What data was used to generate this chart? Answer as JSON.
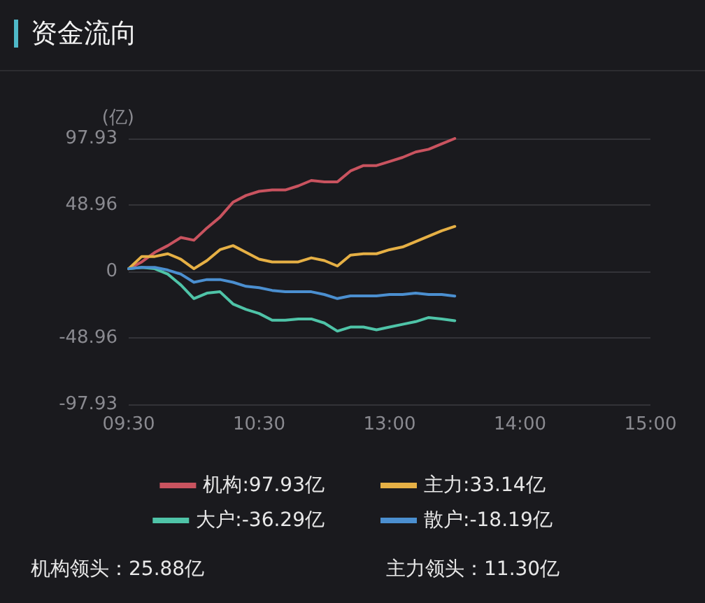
{
  "chart_data": {
    "type": "line",
    "title": "资金流向",
    "ylabel": "(亿)",
    "categories": [
      "09:30",
      null,
      null,
      null,
      null,
      null,
      null,
      null,
      null,
      null,
      "10:30",
      null,
      null,
      null,
      null,
      null,
      null,
      null,
      null,
      null,
      "13:00",
      null,
      null,
      null,
      null,
      null,
      null,
      null,
      null,
      null,
      "14:00",
      null,
      null,
      null,
      null,
      null,
      null,
      null,
      null,
      null,
      "15:00"
    ],
    "series": [
      {
        "name": "机构:97.93亿",
        "color": "#c9535f",
        "values": [
          2,
          7,
          14,
          19,
          25,
          23,
          32,
          40,
          51,
          56,
          59,
          60,
          60,
          63,
          67,
          66,
          66,
          74,
          78,
          78,
          81,
          84,
          88,
          90,
          94,
          97.93,
          null,
          null,
          null,
          null,
          null,
          null,
          null,
          null,
          null,
          null,
          null,
          null,
          null,
          null,
          null
        ]
      },
      {
        "name": "主力:33.14亿",
        "color": "#e6b045",
        "values": [
          2,
          11,
          11,
          13,
          9,
          2,
          8,
          16,
          19,
          14,
          9,
          7,
          7,
          7,
          10,
          8,
          4,
          12,
          13,
          13,
          16,
          18,
          22,
          26,
          30,
          33.14,
          null,
          null,
          null,
          null,
          null,
          null,
          null,
          null,
          null,
          null,
          null,
          null,
          null,
          null,
          null
        ]
      },
      {
        "name": "大户:-36.29亿",
        "color": "#4fc4a8",
        "values": [
          2,
          3,
          2,
          -2,
          -10,
          -20,
          -16,
          -15,
          -24,
          -28,
          -31,
          -36,
          -36,
          -35,
          -35,
          -38,
          -44,
          -41,
          -41,
          -43,
          -41,
          -39,
          -37,
          -34,
          -35,
          -36.29,
          null,
          null,
          null,
          null,
          null,
          null,
          null,
          null,
          null,
          null,
          null,
          null,
          null,
          null,
          null
        ]
      },
      {
        "name": "散户:-18.19亿",
        "color": "#4b8fd0",
        "values": [
          2,
          3,
          3,
          1,
          -2,
          -8,
          -6,
          -6,
          -8,
          -11,
          -12,
          -14,
          -15,
          -15,
          -15,
          -17,
          -20,
          -18,
          -18,
          -18,
          -17,
          -17,
          -16,
          -17,
          -17,
          -18.19,
          null,
          null,
          null,
          null,
          null,
          null,
          null,
          null,
          null,
          null,
          null,
          null,
          null,
          null,
          null
        ]
      }
    ],
    "ylim": [
      -97.93,
      97.93
    ],
    "yticks": [
      -97.93,
      -48.96,
      0,
      48.96,
      97.93
    ],
    "grid": "y",
    "legend": "bottom",
    "marker": "none",
    "line_style": "solid",
    "annotations": [
      "机构领头：25.88亿",
      "主力领头：11.30亿"
    ]
  }
}
